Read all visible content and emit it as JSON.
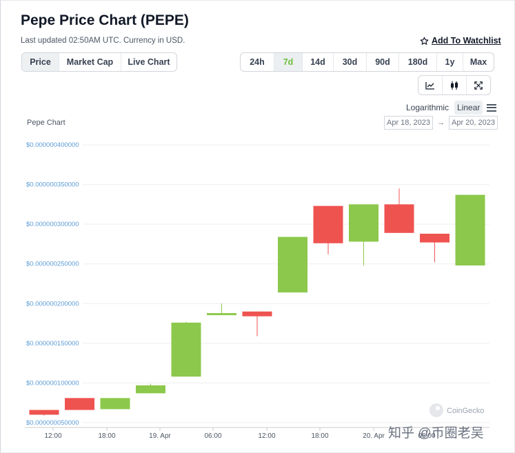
{
  "header": {
    "title": "Pepe Price Chart (PEPE)",
    "subtitle": "Last updated 02:50AM UTC. Currency in USD.",
    "watchlist_label": "Add To Watchlist"
  },
  "tabs": [
    {
      "label": "Price",
      "active": true
    },
    {
      "label": "Market Cap",
      "active": false
    },
    {
      "label": "Live Chart",
      "active": false
    }
  ],
  "ranges": [
    {
      "label": "24h",
      "active": false
    },
    {
      "label": "7d",
      "active": true
    },
    {
      "label": "14d",
      "active": false
    },
    {
      "label": "30d",
      "active": false
    },
    {
      "label": "90d",
      "active": false
    },
    {
      "label": "180d",
      "active": false
    },
    {
      "label": "1y",
      "active": false
    },
    {
      "label": "Max",
      "active": false
    }
  ],
  "chart_tools": [
    "line-chart-icon",
    "candlestick-icon",
    "fullscreen-icon"
  ],
  "scale_options": {
    "log": "Logarithmic",
    "linear": "Linear",
    "active": "Linear"
  },
  "chart_label": "Pepe Chart",
  "date_range": {
    "from": "Apr 18, 2023",
    "to": "Apr 20, 2023",
    "arrow": "→"
  },
  "brand": "CoinGecko",
  "watermark": "知乎 @币圈老吴",
  "colors": {
    "up": "#8cc84b",
    "down": "#ef5350",
    "axis_text": "#5b9bd5",
    "grid": "#eeeeee",
    "active_range": "#6bbf3a"
  },
  "chart_data": {
    "type": "candlestick",
    "ylim": [
      5e-08,
      4e-07
    ],
    "y_ticks": [
      {
        "value": 4e-07,
        "label": "$0.000000400000"
      },
      {
        "value": 3.5e-07,
        "label": "$0.000000350000"
      },
      {
        "value": 3e-07,
        "label": "$0.000000300000"
      },
      {
        "value": 2.5e-07,
        "label": "$0.000000250000"
      },
      {
        "value": 2e-07,
        "label": "$0.000000200000"
      },
      {
        "value": 1.5e-07,
        "label": "$0.000000150000"
      },
      {
        "value": 1e-07,
        "label": "$0.000000100000"
      },
      {
        "value": 5e-08,
        "label": "$0.000000050000"
      }
    ],
    "x_ticks": [
      "12:00",
      "18:00",
      "19. Apr",
      "06:00",
      "12:00",
      "18:00",
      "20. Apr",
      "06:00"
    ],
    "candles": [
      {
        "open": 6.6e-08,
        "high": 6.6e-08,
        "low": 5.9e-08,
        "close": 6e-08
      },
      {
        "open": 8.1e-08,
        "high": 8.1e-08,
        "low": 6.6e-08,
        "close": 6.6e-08
      },
      {
        "open": 6.7e-08,
        "high": 8.1e-08,
        "low": 6.7e-08,
        "close": 8.1e-08
      },
      {
        "open": 8.7e-08,
        "high": 9.9e-08,
        "low": 8.7e-08,
        "close": 9.7e-08
      },
      {
        "open": 1.08e-07,
        "high": 1.77e-07,
        "low": 1.08e-07,
        "close": 1.76e-07
      },
      {
        "open": 1.86e-07,
        "high": 2e-07,
        "low": 1.86e-07,
        "close": 1.88e-07
      },
      {
        "open": 1.9e-07,
        "high": 1.9e-07,
        "low": 1.59e-07,
        "close": 1.84e-07
      },
      {
        "open": 2.14e-07,
        "high": 2.84e-07,
        "low": 2.14e-07,
        "close": 2.84e-07
      },
      {
        "open": 3.23e-07,
        "high": 3.23e-07,
        "low": 2.62e-07,
        "close": 2.76e-07
      },
      {
        "open": 2.78e-07,
        "high": 3.25e-07,
        "low": 2.48e-07,
        "close": 3.25e-07
      },
      {
        "open": 3.25e-07,
        "high": 3.45e-07,
        "low": 2.89e-07,
        "close": 2.89e-07
      },
      {
        "open": 2.88e-07,
        "high": 2.88e-07,
        "low": 2.52e-07,
        "close": 2.77e-07
      },
      {
        "open": 2.48e-07,
        "high": 3.37e-07,
        "low": 2.48e-07,
        "close": 3.37e-07
      }
    ]
  }
}
